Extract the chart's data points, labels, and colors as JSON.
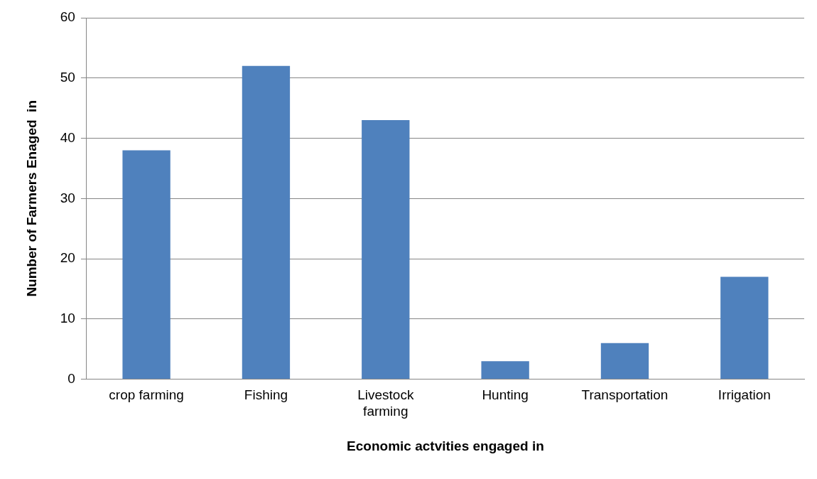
{
  "chart_data": {
    "type": "bar",
    "xlabel": "Economic actvities engaged in",
    "ylabel": "Number of Farmers Enaged  in",
    "categories": [
      "crop farming",
      "Fishing",
      "Livestock farming",
      "Hunting",
      "Transportation",
      "Irrigation"
    ],
    "values": [
      38,
      52,
      43,
      3,
      6,
      17
    ],
    "color": "#4f81bd",
    "ylim": [
      0,
      60
    ],
    "yticks": [
      0,
      10,
      20,
      30,
      40,
      50,
      60
    ],
    "grid": "y",
    "legend": false
  }
}
